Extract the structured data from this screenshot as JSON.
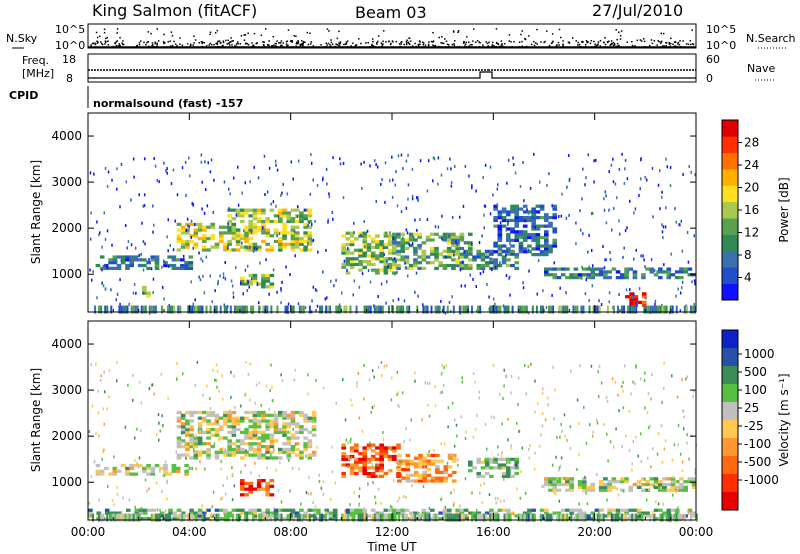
{
  "header": {
    "station": "King Salmon (fitACF)",
    "beam": "Beam 03",
    "date": "27/Jul/2010"
  },
  "top_panels": {
    "nsky_label": "N.Sky",
    "nsky_ticks": [
      "10^5",
      "10^0"
    ],
    "nsearch_label": "N.Search",
    "freq_label_1": "Freq.",
    "freq_label_2": "[MHz]",
    "freq_ticks": [
      "18",
      "8"
    ],
    "nave_label": "Nave",
    "nave_ticks": [
      "60",
      "0"
    ],
    "cpid_label": "CPID",
    "cpid_text": "normalsound (fast) -157"
  },
  "chart_data": [
    {
      "type": "heatmap",
      "name": "power",
      "xlabel": "Time UT",
      "ylabel": "Slant Range [km]",
      "x_ticks": [
        "00:00",
        "04:00",
        "08:00",
        "12:00",
        "16:00",
        "20:00",
        "00:00"
      ],
      "xlim_hours": [
        0,
        24
      ],
      "ylim": [
        180,
        4500
      ],
      "y_ticks": [
        1000,
        2000,
        3000,
        4000
      ],
      "colorbar": {
        "label": "Power [dB]",
        "ticks": [
          "4",
          "8",
          "12",
          "16",
          "20",
          "24",
          "28"
        ],
        "colors": [
          "#1010ff",
          "#2050c8",
          "#3a6fb0",
          "#2e8b57",
          "#5aa050",
          "#a8c850",
          "#ffe020",
          "#ffb000",
          "#ff7000",
          "#ff3000",
          "#e00000"
        ]
      },
      "regions": [
        {
          "t0": 0.3,
          "t1": 4.0,
          "r0": 1100,
          "r1": 1350,
          "level": 0.25
        },
        {
          "t0": 3.5,
          "t1": 5.5,
          "r0": 1500,
          "r1": 2100,
          "level": 0.55
        },
        {
          "t0": 5.5,
          "t1": 8.8,
          "r0": 1500,
          "r1": 2400,
          "level": 0.5
        },
        {
          "t0": 6.0,
          "t1": 7.2,
          "r0": 700,
          "r1": 1000,
          "level": 0.45
        },
        {
          "t0": 1.8,
          "t1": 2.4,
          "r0": 500,
          "r1": 700,
          "level": 0.45
        },
        {
          "t0": 10.0,
          "t1": 12.0,
          "r0": 1000,
          "r1": 1900,
          "level": 0.45
        },
        {
          "t0": 12.0,
          "t1": 15.0,
          "r0": 1100,
          "r1": 1900,
          "level": 0.4
        },
        {
          "t0": 15.0,
          "t1": 17.0,
          "r0": 1100,
          "r1": 1500,
          "level": 0.3
        },
        {
          "t0": 16.0,
          "t1": 18.5,
          "r0": 1400,
          "r1": 2500,
          "level": 0.2
        },
        {
          "t0": 18.0,
          "t1": 24.0,
          "r0": 900,
          "r1": 1100,
          "level": 0.25
        },
        {
          "t0": 21.2,
          "t1": 21.9,
          "r0": 300,
          "r1": 600,
          "level": 0.9
        }
      ]
    },
    {
      "type": "heatmap",
      "name": "velocity",
      "xlabel": "Time UT",
      "ylabel": "Slant Range [km]",
      "x_ticks": [
        "00:00",
        "04:00",
        "08:00",
        "12:00",
        "16:00",
        "20:00",
        "00:00"
      ],
      "xlim_hours": [
        0,
        24
      ],
      "ylim": [
        180,
        4500
      ],
      "y_ticks": [
        1000,
        2000,
        3000,
        4000
      ],
      "colorbar": {
        "label": "Velocity [m s⁻¹]",
        "ticks": [
          "1000",
          "500",
          "100",
          "25",
          "-25",
          "-100",
          "-500",
          "-1000"
        ],
        "colors": [
          "#1020c8",
          "#2850a8",
          "#3c8c5a",
          "#58c040",
          "#c0c0c0",
          "#ffc850",
          "#ff9830",
          "#ff6a10",
          "#ff3000",
          "#e80000"
        ]
      },
      "regions": [
        {
          "t0": 0.3,
          "t1": 4.0,
          "r0": 1150,
          "r1": 1350,
          "level": 0.45
        },
        {
          "t0": 3.5,
          "t1": 9.0,
          "r0": 1500,
          "r1": 2500,
          "level": 0.45
        },
        {
          "t0": 6.0,
          "t1": 7.3,
          "r0": 700,
          "r1": 1050,
          "level": 0.85
        },
        {
          "t0": 10.0,
          "t1": 12.2,
          "r0": 1100,
          "r1": 1800,
          "level": 0.8
        },
        {
          "t0": 12.2,
          "t1": 14.5,
          "r0": 1000,
          "r1": 1600,
          "level": 0.65
        },
        {
          "t0": 15.0,
          "t1": 17.0,
          "r0": 1100,
          "r1": 1500,
          "level": 0.35
        },
        {
          "t0": 18.0,
          "t1": 24.0,
          "r0": 800,
          "r1": 1050,
          "level": 0.45
        },
        {
          "t0": 0.0,
          "t1": 24.0,
          "r0": 180,
          "r1": 400,
          "level": 0.35
        }
      ]
    }
  ]
}
